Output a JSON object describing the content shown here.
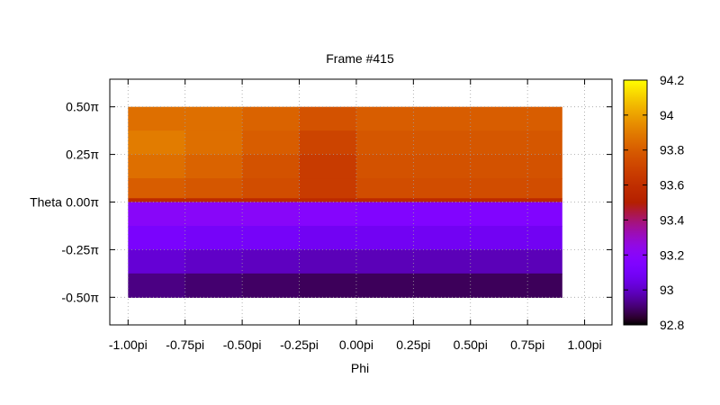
{
  "chart_data": {
    "type": "heatmap",
    "title": "Frame #415",
    "xlabel": "Phi",
    "ylabel": "Theta",
    "xlim": [
      -1.08,
      1.12
    ],
    "ylim": [
      -0.645,
      0.645
    ],
    "x_ticks": [
      {
        "value": -1.0,
        "label": "-1.00pi"
      },
      {
        "value": -0.75,
        "label": "-0.75pi"
      },
      {
        "value": -0.5,
        "label": "-0.50pi"
      },
      {
        "value": -0.25,
        "label": "-0.25pi"
      },
      {
        "value": 0.0,
        "label": "0.00pi"
      },
      {
        "value": 0.25,
        "label": "0.25pi"
      },
      {
        "value": 0.5,
        "label": "0.50pi"
      },
      {
        "value": 0.75,
        "label": "0.75pi"
      },
      {
        "value": 1.0,
        "label": "1.00pi"
      }
    ],
    "y_ticks": [
      {
        "value": 0.5,
        "label": "0.50π"
      },
      {
        "value": 0.25,
        "label": "0.25π"
      },
      {
        "value": 0.0,
        "label": "0.00π"
      },
      {
        "value": -0.25,
        "label": "-0.25π"
      },
      {
        "value": -0.5,
        "label": "-0.50π"
      }
    ],
    "grid": true,
    "colorbar": {
      "min": 92.8,
      "max": 94.2,
      "ticks": [
        92.8,
        93,
        93.2,
        93.4,
        93.6,
        93.8,
        94,
        94.2
      ],
      "tick_labels": [
        "92.8",
        "93",
        "93.2",
        "93.4",
        "93.6",
        "93.8",
        "94",
        "94.2"
      ],
      "colormap": "gnuplot-pm3d"
    },
    "x_edges": [
      -1.0,
      -0.75,
      -0.5,
      -0.25,
      0.0,
      0.25,
      0.5,
      0.75,
      0.9
    ],
    "y_edges": [
      0.5,
      0.375,
      0.25,
      0.125,
      0.02,
      0.0,
      -0.125,
      -0.25,
      -0.375,
      -0.5
    ],
    "values": [
      [
        93.86,
        93.86,
        93.82,
        93.76,
        93.8,
        93.8,
        93.8,
        93.8
      ],
      [
        93.9,
        93.86,
        93.8,
        93.7,
        93.78,
        93.78,
        93.78,
        93.78
      ],
      [
        93.86,
        93.82,
        93.76,
        93.66,
        93.76,
        93.76,
        93.76,
        93.76
      ],
      [
        93.8,
        93.78,
        93.74,
        93.66,
        93.74,
        93.74,
        93.74,
        93.74
      ],
      [
        93.56,
        93.56,
        93.56,
        93.56,
        93.56,
        93.56,
        93.56,
        93.56
      ],
      [
        93.2,
        93.2,
        93.2,
        93.18,
        93.16,
        93.16,
        93.16,
        93.16
      ],
      [
        93.12,
        93.1,
        93.1,
        93.08,
        93.08,
        93.08,
        93.08,
        93.08
      ],
      [
        93.02,
        93.0,
        92.99,
        92.98,
        92.98,
        92.98,
        92.98,
        92.98
      ],
      [
        92.92,
        92.9,
        92.89,
        92.88,
        92.88,
        92.88,
        92.88,
        92.88
      ]
    ]
  }
}
